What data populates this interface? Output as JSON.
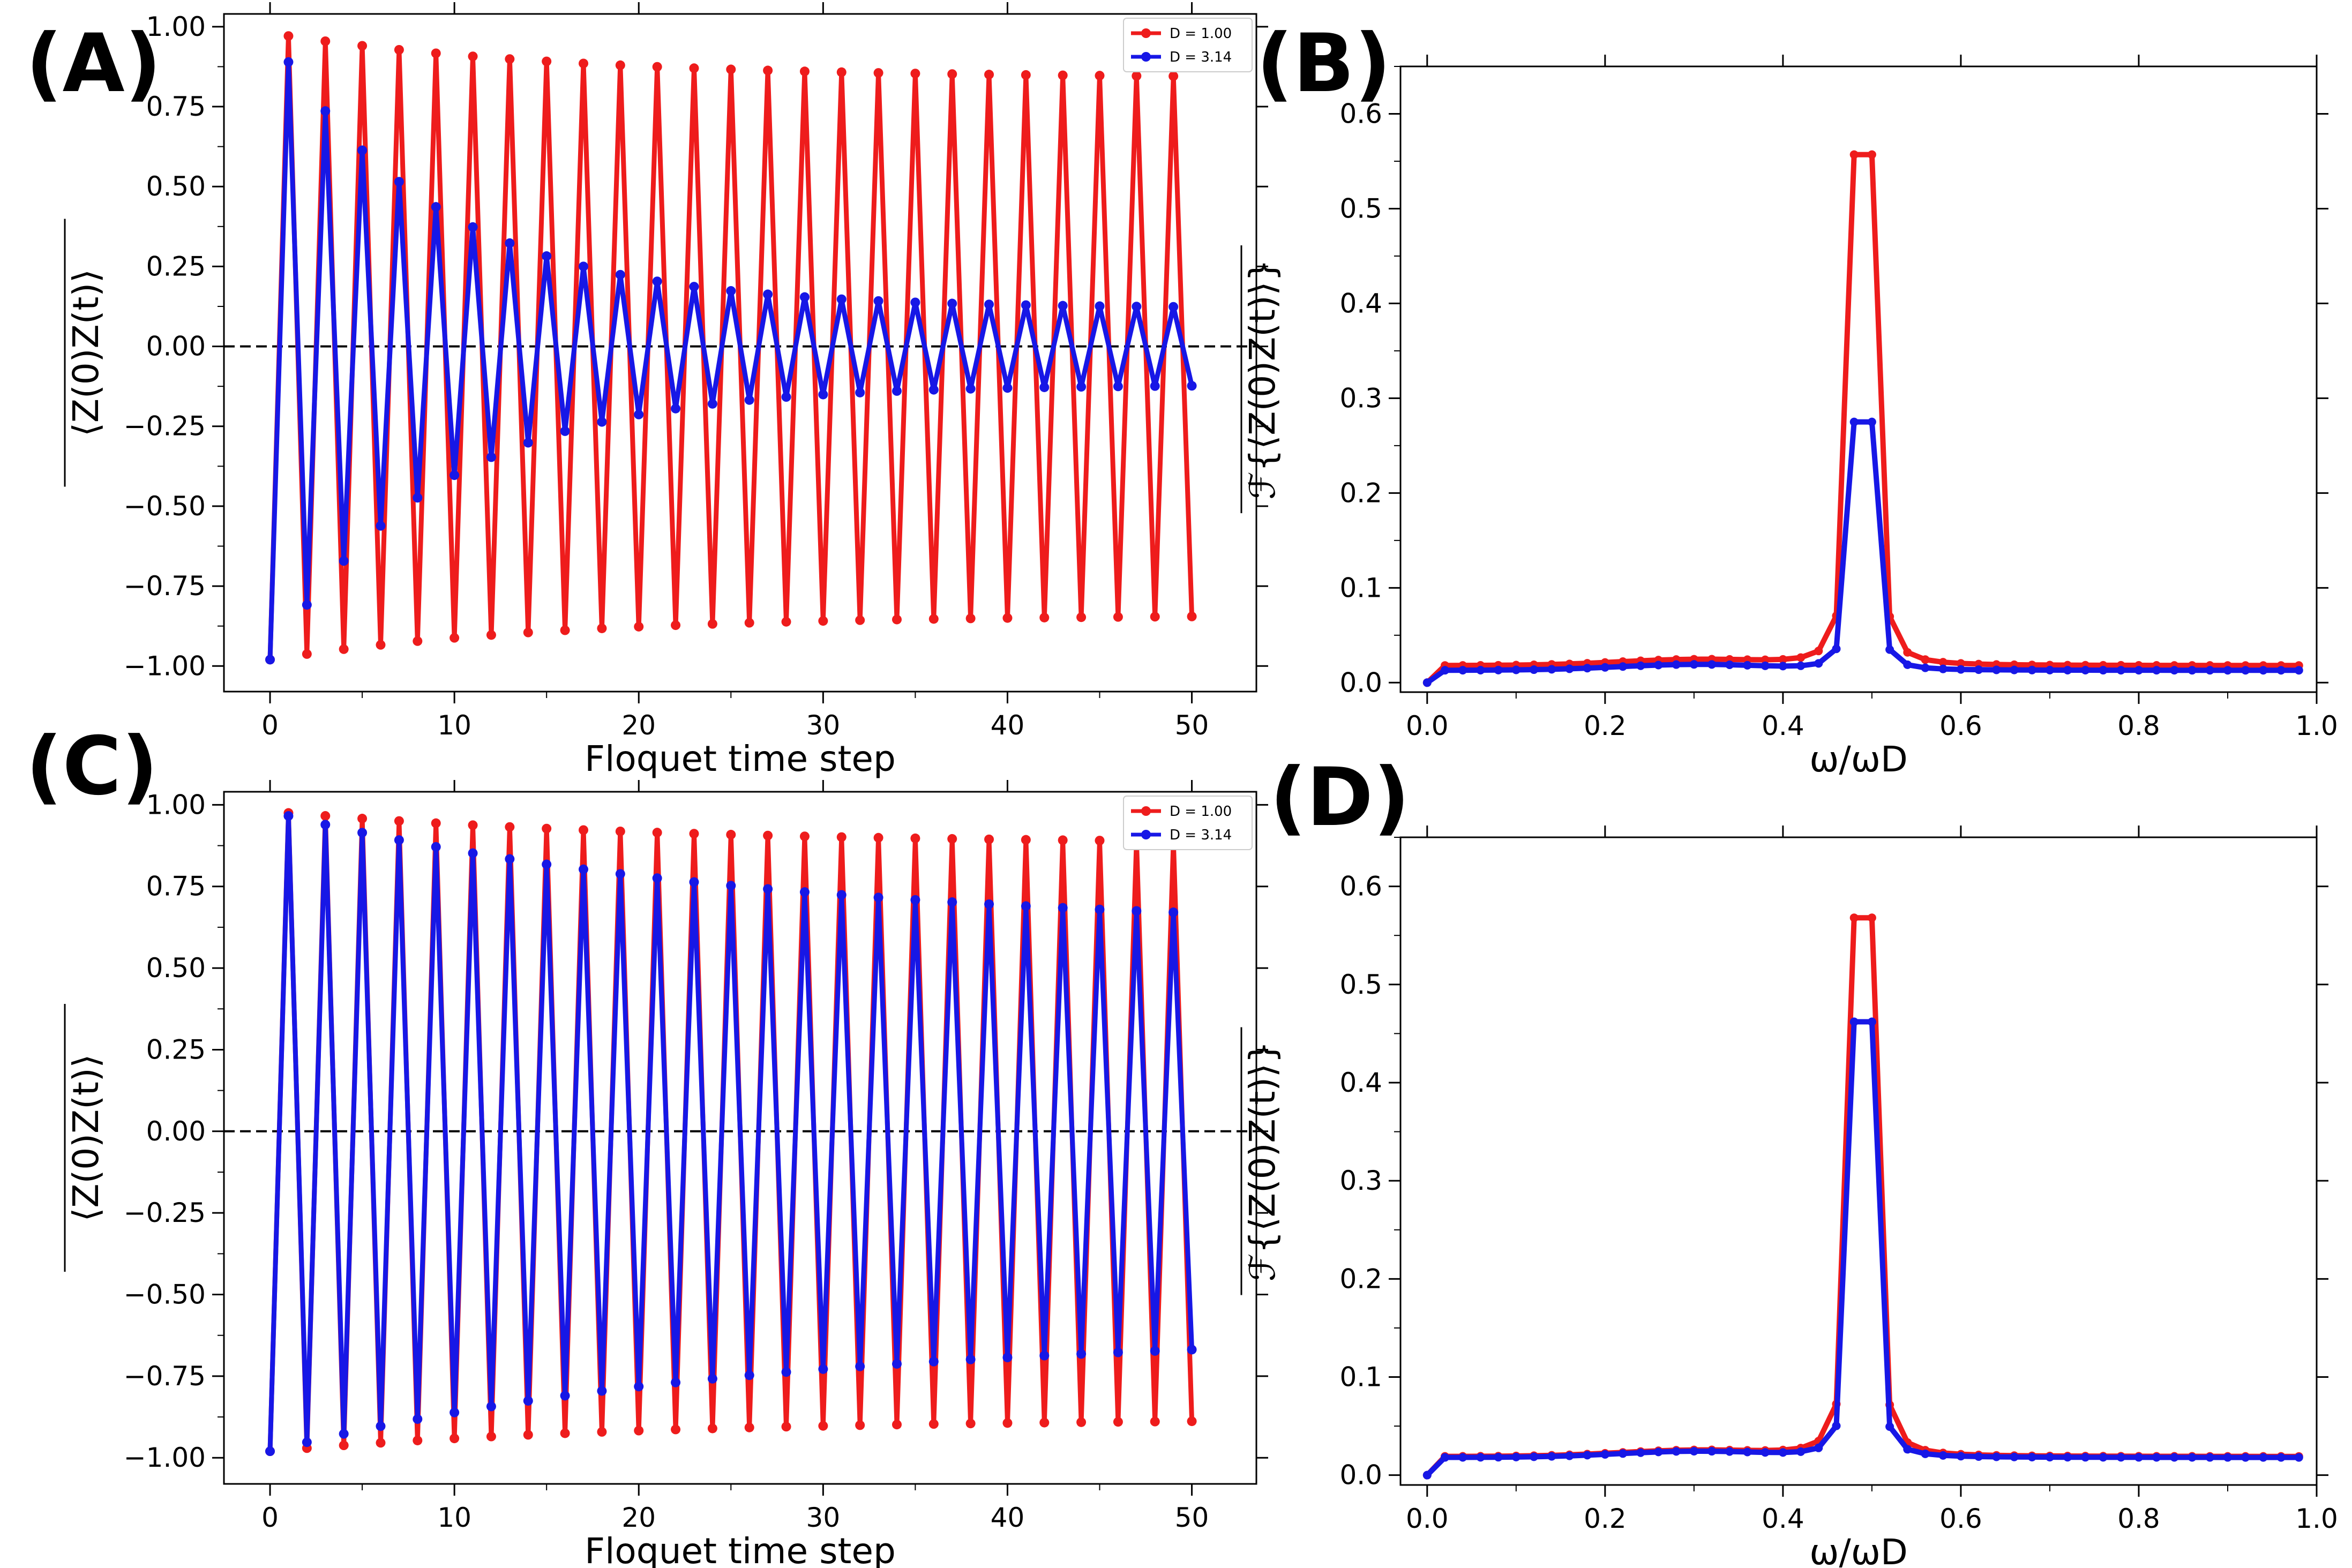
{
  "chart_data": [
    {
      "panel": "(A)",
      "type": "line",
      "xlabel": "Floquet time step",
      "ylabel": "⟨Z(0)Z(t)⟩",
      "xlim": [
        -2.5,
        53.5
      ],
      "ylim": [
        -1.08,
        1.04
      ],
      "xticks": [
        0,
        10,
        20,
        30,
        40,
        50
      ],
      "yticks": [
        -1.0,
        -0.75,
        -0.5,
        -0.25,
        0.0,
        0.25,
        0.5,
        0.75,
        1.0
      ],
      "hline": 0,
      "legend_position": "top-right",
      "series": [
        {
          "name": "D = 1.00",
          "color": "#ee1c1c",
          "envelope": {
            "start": 0.98,
            "end": 0.84,
            "tau": 15
          }
        },
        {
          "name": "D = 3.14",
          "color": "#1717e6",
          "envelope": {
            "start": 0.98,
            "end": 0.12,
            "tau": 9
          }
        }
      ]
    },
    {
      "panel": "(B)",
      "type": "line",
      "xlabel": "ω/ωD",
      "ylabel": "ℱ{⟨Z(0)Z(t)⟩}",
      "xlim": [
        -0.03,
        1.0
      ],
      "ylim": [
        -0.01,
        0.65
      ],
      "xticks": [
        0.0,
        0.2,
        0.4,
        0.6,
        0.8,
        1.0
      ],
      "yticks": [
        0.0,
        0.1,
        0.2,
        0.3,
        0.4,
        0.5,
        0.6
      ],
      "series": [
        {
          "name": "D = 1.00",
          "color": "#ee1c1c",
          "peak": 0.557,
          "base": 0.018,
          "width": 0.013
        },
        {
          "name": "D = 3.14",
          "color": "#1717e6",
          "peak": 0.275,
          "base": 0.013,
          "width": 0.012
        }
      ]
    },
    {
      "panel": "(C)",
      "type": "line",
      "xlabel": "Floquet time step",
      "ylabel": "⟨Z(0)Z(t)⟩",
      "xlim": [
        -2.5,
        53.5
      ],
      "ylim": [
        -1.08,
        1.04
      ],
      "xticks": [
        0,
        10,
        20,
        30,
        40,
        50
      ],
      "yticks": [
        -1.0,
        -0.75,
        -0.5,
        -0.25,
        0.0,
        0.25,
        0.5,
        0.75,
        1.0
      ],
      "hline": 0,
      "legend_position": "top-right",
      "series": [
        {
          "name": "D = 1.00",
          "color": "#ee1c1c",
          "envelope": {
            "start": 0.98,
            "end": 0.88,
            "tau": 20
          }
        },
        {
          "name": "D = 3.14",
          "color": "#1717e6",
          "envelope": {
            "start": 0.98,
            "end": 0.62,
            "tau": 25
          }
        }
      ]
    },
    {
      "panel": "(D)",
      "type": "line",
      "xlabel": "ω/ωD",
      "ylabel": "ℱ{⟨Z(0)Z(t)⟩}",
      "xlim": [
        -0.03,
        1.0
      ],
      "ylim": [
        -0.01,
        0.65
      ],
      "xticks": [
        0.0,
        0.2,
        0.4,
        0.6,
        0.8,
        1.0
      ],
      "yticks": [
        0.0,
        0.1,
        0.2,
        0.3,
        0.4,
        0.5,
        0.6
      ],
      "series": [
        {
          "name": "D = 1.00",
          "color": "#ee1c1c",
          "peak": 0.568,
          "base": 0.019,
          "width": 0.013
        },
        {
          "name": "D = 3.14",
          "color": "#1717e6",
          "peak": 0.462,
          "base": 0.018,
          "width": 0.011
        }
      ]
    }
  ]
}
